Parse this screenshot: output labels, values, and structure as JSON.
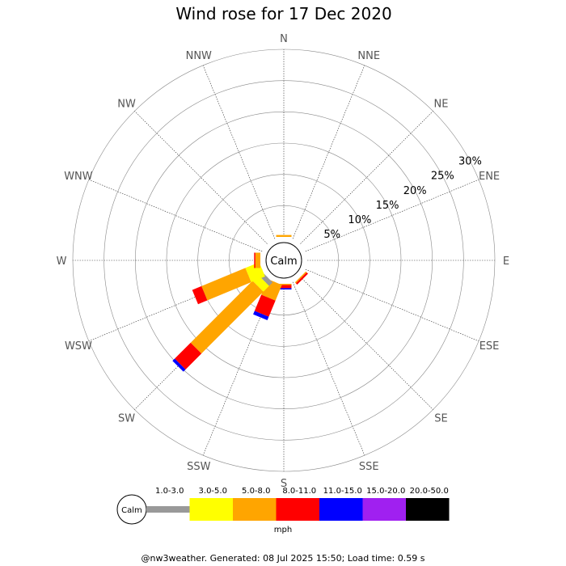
{
  "title": "Wind rose for 17 Dec 2020",
  "footer": "@nw3weather. Generated: 08 Jul 2025 15:50; Load time: 0.59 s",
  "calm_label": "Calm",
  "unit_label": "mph",
  "chart_data": {
    "type": "wind-rose",
    "title": "Wind rose for 17 Dec 2020",
    "directions": [
      "N",
      "NNE",
      "NE",
      "ENE",
      "E",
      "ESE",
      "SE",
      "SSE",
      "S",
      "SSW",
      "SW",
      "WSW",
      "W",
      "WNW",
      "NW",
      "NNW"
    ],
    "direction_angles_deg": [
      0,
      22.5,
      45,
      67.5,
      90,
      112.5,
      135,
      157.5,
      180,
      202.5,
      225,
      247.5,
      270,
      292.5,
      315,
      337.5
    ],
    "ring_labels": [
      "5%",
      "10%",
      "15%",
      "20%",
      "25%",
      "30%"
    ],
    "ring_values": [
      5,
      10,
      15,
      20,
      25,
      30
    ],
    "rmax_percent": 30,
    "speed_bins": [
      {
        "label": "1.0-3.0",
        "color": "#999999"
      },
      {
        "label": "3.0-5.0",
        "color": "#ffff00"
      },
      {
        "label": "5.0-8.0",
        "color": "#ffa500"
      },
      {
        "label": "8.0-11.0",
        "color": "#ff0000"
      },
      {
        "label": "11.0-15.0",
        "color": "#0000ff"
      },
      {
        "label": "15.0-20.0",
        "color": "#a020f0"
      },
      {
        "label": "20.0-50.0",
        "color": "#000000"
      }
    ],
    "speed_unit": "mph",
    "series": [
      {
        "direction": "N",
        "values": [
          0,
          0,
          0.3,
          0,
          0,
          0,
          0
        ]
      },
      {
        "direction": "SE",
        "values": [
          0,
          0,
          0.2,
          0.3,
          0,
          0,
          0
        ]
      },
      {
        "direction": "S",
        "values": [
          0,
          0,
          0.2,
          0.5,
          0.2,
          0,
          0
        ]
      },
      {
        "direction": "SSW",
        "values": [
          0,
          0,
          2.7,
          2.8,
          0.6,
          0,
          0
        ]
      },
      {
        "direction": "SW",
        "values": [
          0.8,
          1.3,
          14.0,
          3.6,
          0.5,
          0,
          0
        ]
      },
      {
        "direction": "WSW",
        "values": [
          0,
          2.4,
          7.6,
          1.6,
          0,
          0,
          0
        ]
      },
      {
        "direction": "W",
        "values": [
          0,
          0,
          0.8,
          0.2,
          0,
          0,
          0
        ]
      }
    ]
  }
}
